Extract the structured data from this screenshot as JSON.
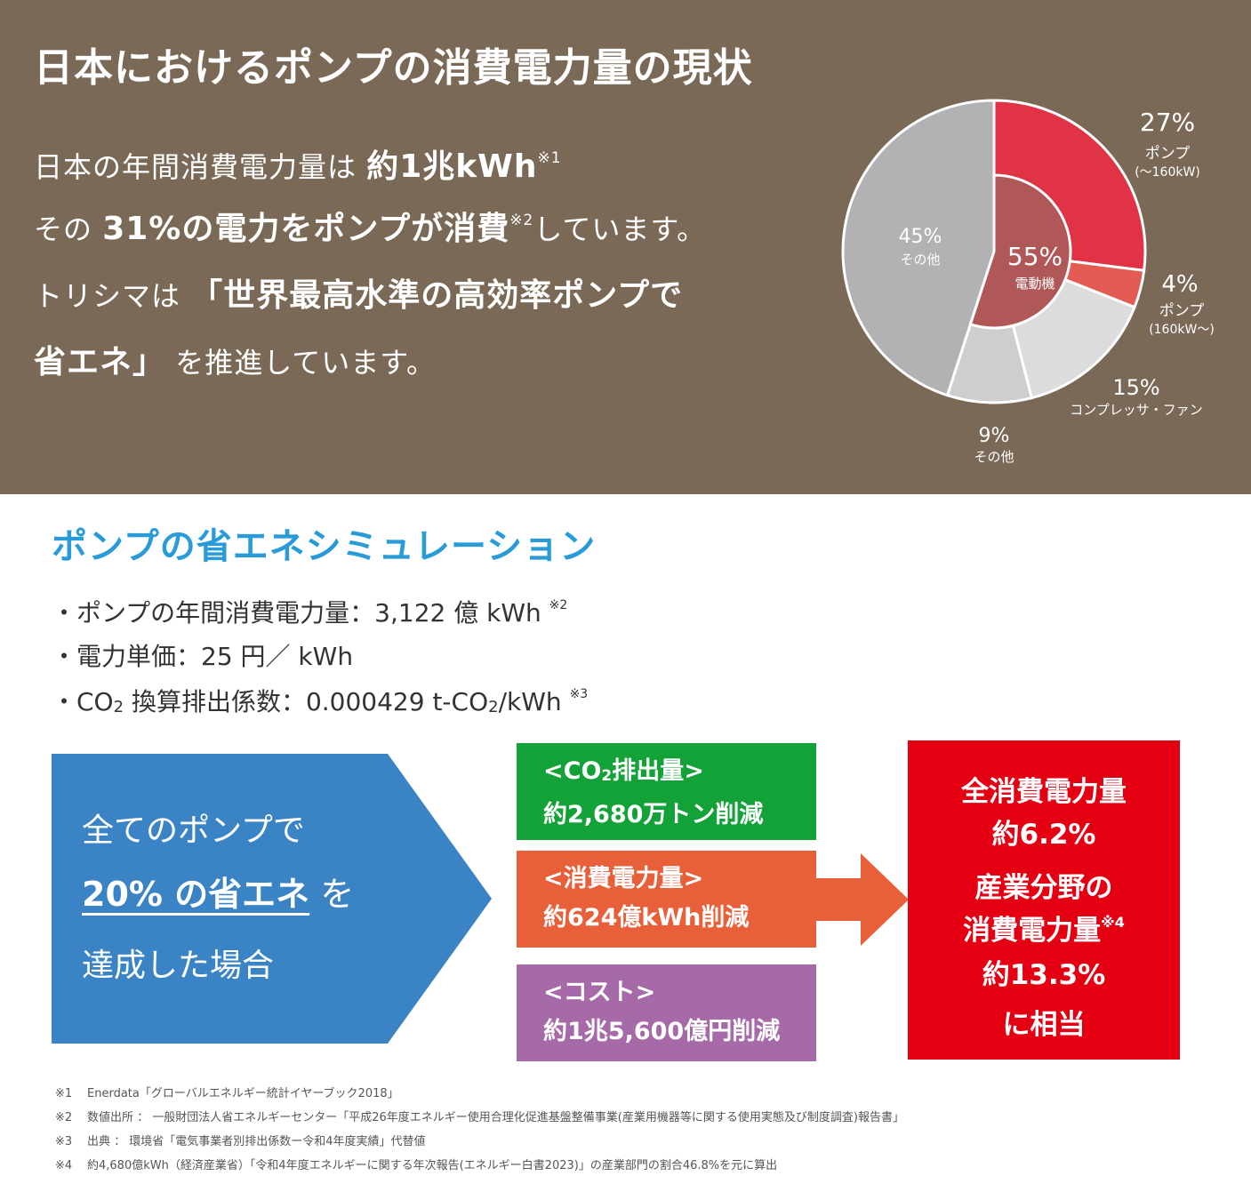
{
  "top": {
    "title": "日本におけるポンプの消費電力量の現状",
    "intro": {
      "line1_pre": "日本の年間消費電力量は ",
      "line1_bold": "約1兆kWh",
      "line1_note": "※1",
      "line2_pre": "その ",
      "line2_bold": "31%の電力をポンプが消費",
      "line2_note": "※2",
      "line2_post": "しています。",
      "line3_pre": "トリシマは ",
      "line3_bold": "「世界最高水準の高効率ポンプで",
      "line4_bold": "省エネ」",
      "line4_post": " を推進しています。"
    }
  },
  "chart_data": {
    "type": "pie",
    "outer": [
      {
        "label": "ポンプ",
        "sublabel": "(〜160kW)",
        "value": 27,
        "value_text": "27%",
        "color": "#e03346"
      },
      {
        "label": "ポンプ",
        "sublabel": "(160kW〜)",
        "value": 4,
        "value_text": "4%",
        "color": "#e35b52"
      },
      {
        "label": "コンプレッサ・ファン",
        "sublabel": "",
        "value": 15,
        "value_text": "15%",
        "color": "#dcdcdc"
      },
      {
        "label": "その他",
        "sublabel": "",
        "value": 9,
        "value_text": "9%",
        "color": "#cecece"
      },
      {
        "label": "その他",
        "sublabel": "",
        "value": 45,
        "value_text": "45%",
        "color": "#b2b2b4"
      }
    ],
    "inner": {
      "label": "電動機",
      "value": 55,
      "value_text": "55%",
      "color": "#b05858"
    }
  },
  "simulation": {
    "title": "ポンプの省エネシミュレーション",
    "bullet1": "・ポンプの年間消費電力量：3,122 億 kWh ",
    "bullet1_note": "※2",
    "bullet2": "・電力単価：25 円／ kWh",
    "bullet3_a": "・CO",
    "bullet3_sub": "2",
    "bullet3_b": " 換算排出係数：0.000429 t-CO",
    "bullet3_sub2": "2",
    "bullet3_c": "/kWh ",
    "bullet3_note": "※3",
    "arrow": {
      "line1": "全てのポンプで",
      "line2_em": "20% の省エネ",
      "line2_post": " を",
      "line3": "達成した場合"
    },
    "boxes": {
      "co2_head_a": "<CO",
      "co2_head_sub": "2",
      "co2_head_b": "排出量>",
      "co2_value": "約2,680万トン削減",
      "power_head": "<消費電力量>",
      "power_value": "約624億kWh削減",
      "cost_head": "<コスト>",
      "cost_value": "約1兆5,600億円削減"
    },
    "result": {
      "l1": "全消費電力量",
      "l2": "約6.2%",
      "l3": "産業分野の",
      "l4": "消費電力量",
      "l4_note": "※4",
      "l5": "約13.3%",
      "l6": "に相当"
    },
    "colors": {
      "co2": "#13a238",
      "power": "#e8603a",
      "cost": "#a56aa7",
      "result": "#e40012",
      "arrow": "#3a84c6"
    }
  },
  "footnotes": [
    {
      "num": "※1",
      "text": "Enerdata「グローバルエネルギー統計イヤーブック2018」"
    },
    {
      "num": "※2",
      "text": "数値出所 ： 一般財団法人省エネルギーセンター「平成26年度エネルギー使用合理化促進基盤整備事業(産業用機器等に関する使用実態及び制度調査)報告書」"
    },
    {
      "num": "※3",
      "text": "出典 ： 環境省「電気事業者別排出係数ー令和4年度実績」代替値"
    },
    {
      "num": "※4",
      "text": "約4,680億kWh（経済産業省）「令和4年度エネルギーに関する年次報告(エネルギー白書2023)」の産業部門の割合46.8%を元に算出"
    }
  ]
}
